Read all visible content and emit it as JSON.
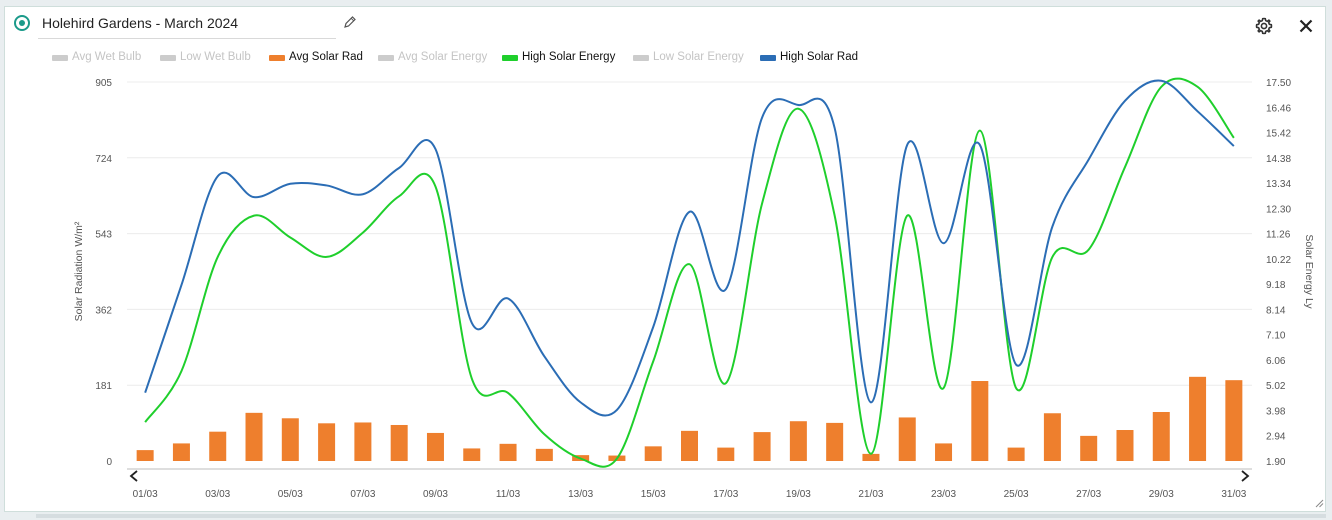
{
  "widget": {
    "title": "Holehird Gardens - March 2024"
  },
  "icons": {
    "status": "status-radio-icon",
    "edit": "pencil-icon",
    "settings": "gear-icon",
    "close": "close-icon",
    "prev": "chevron-left-icon",
    "next": "chevron-right-icon",
    "resize": "resize-handle-icon"
  },
  "legend": [
    {
      "label": "Avg Wet Bulb",
      "color": "#cccccc",
      "active": false
    },
    {
      "label": "Low Wet Bulb",
      "color": "#cccccc",
      "active": false
    },
    {
      "label": "Avg Solar Rad",
      "color": "#ee7f2d",
      "active": true
    },
    {
      "label": "Avg Solar Energy",
      "color": "#cccccc",
      "active": false
    },
    {
      "label": "High Solar Energy",
      "color": "#1fcf2c",
      "active": true
    },
    {
      "label": "Low Solar Energy",
      "color": "#cccccc",
      "active": false
    },
    {
      "label": "High Solar Rad",
      "color": "#2b6db5",
      "active": true
    }
  ],
  "chart_data": {
    "type": "bar+line",
    "x": [
      "01/03",
      "02/03",
      "03/03",
      "04/03",
      "05/03",
      "06/03",
      "07/03",
      "08/03",
      "09/03",
      "10/03",
      "11/03",
      "12/03",
      "13/03",
      "14/03",
      "15/03",
      "16/03",
      "17/03",
      "18/03",
      "19/03",
      "20/03",
      "21/03",
      "22/03",
      "23/03",
      "24/03",
      "25/03",
      "26/03",
      "27/03",
      "28/03",
      "29/03",
      "30/03",
      "31/03"
    ],
    "x_tick_labels": [
      "01/03",
      "03/03",
      "05/03",
      "07/03",
      "09/03",
      "11/03",
      "13/03",
      "15/03",
      "17/03",
      "19/03",
      "21/03",
      "23/03",
      "25/03",
      "27/03",
      "29/03",
      "31/03"
    ],
    "y_left": {
      "label": "Solar Radiation W/m²",
      "ticks": [
        "0",
        "181",
        "362",
        "543",
        "724",
        "905"
      ],
      "range": [
        0,
        905
      ]
    },
    "y_right": {
      "label": "Solar Energy Ly",
      "ticks": [
        "1.90",
        "2.94",
        "3.98",
        "5.02",
        "6.06",
        "7.10",
        "8.14",
        "9.18",
        "10.22",
        "11.26",
        "12.30",
        "13.34",
        "14.38",
        "15.42",
        "16.46",
        "17.50"
      ],
      "range": [
        1.9,
        17.5
      ]
    },
    "series": [
      {
        "name": "Avg Solar Rad",
        "type": "bar",
        "axis": "left",
        "color": "#ee7f2d",
        "values": [
          26,
          42,
          70,
          115,
          102,
          90,
          92,
          86,
          67,
          30,
          41,
          29,
          14,
          13,
          35,
          72,
          32,
          69,
          95,
          91,
          17,
          104,
          42,
          191,
          32,
          114,
          60,
          74,
          117,
          201,
          193
        ]
      },
      {
        "name": "High Solar Energy",
        "type": "line",
        "axis": "right",
        "color": "#1fcf2c",
        "values": [
          3.5,
          5.6,
          10.3,
          12.0,
          11.1,
          10.3,
          11.3,
          12.8,
          13.2,
          5.3,
          4.7,
          3.0,
          2.0,
          2.0,
          6.0,
          10.0,
          5.1,
          12.5,
          16.4,
          12.0,
          2.2,
          12.0,
          4.9,
          15.5,
          4.9,
          10.3,
          10.6,
          14.0,
          17.3,
          17.3,
          15.2
        ]
      },
      {
        "name": "High Solar Rad",
        "type": "line",
        "axis": "left",
        "color": "#2b6db5",
        "values": [
          163,
          420,
          680,
          630,
          662,
          658,
          637,
          700,
          745,
          330,
          388,
          250,
          140,
          122,
          320,
          595,
          410,
          820,
          850,
          795,
          140,
          755,
          520,
          755,
          230,
          560,
          720,
          860,
          908,
          835,
          752
        ]
      }
    ],
    "grid": true,
    "legend_position": "top-left"
  }
}
